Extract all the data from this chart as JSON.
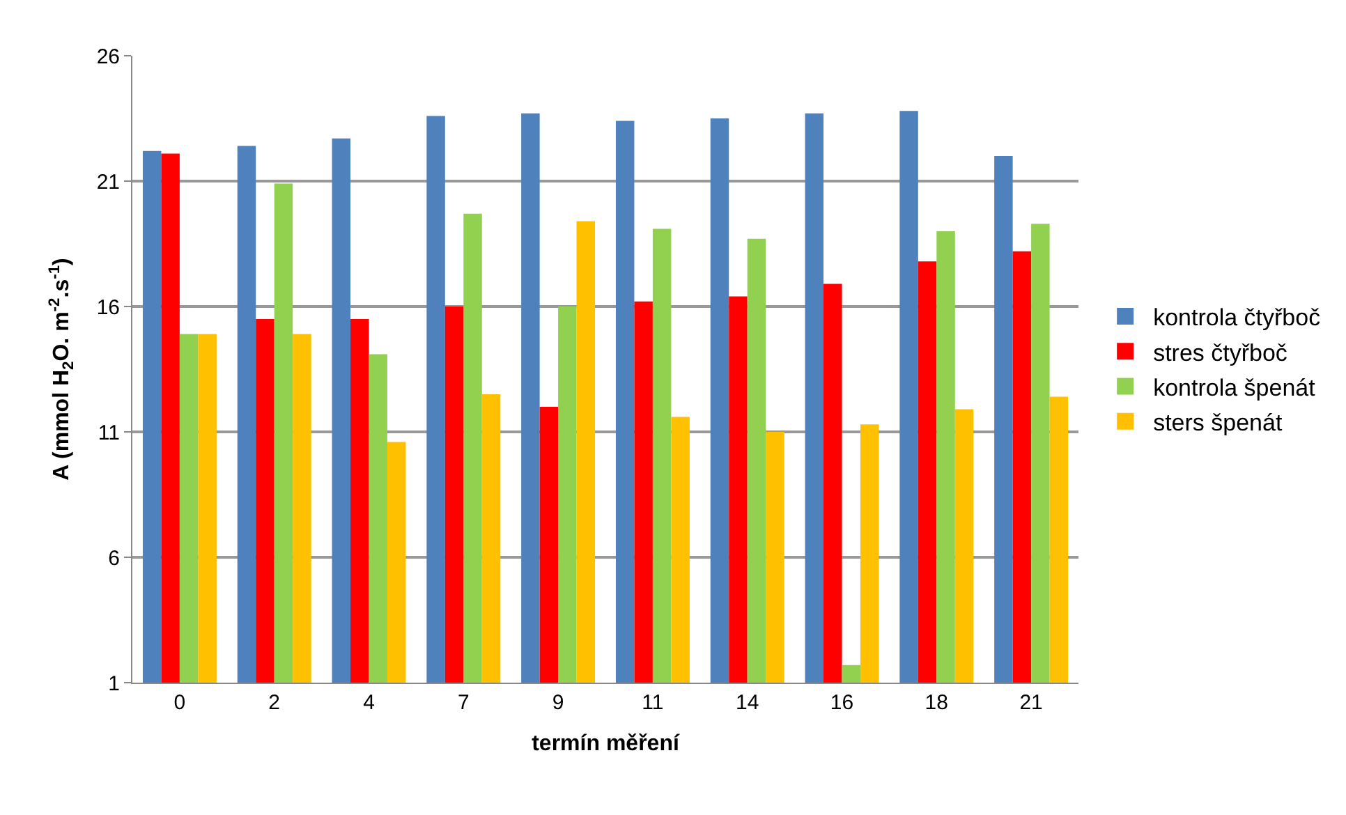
{
  "chart_data": {
    "type": "bar",
    "xlabel": "termín měření",
    "ylabel": "A (mmol H$_{2}$O. m$^{-2}$.s$^{-1}$)",
    "categories": [
      "0",
      "2",
      "4",
      "7",
      "9",
      "11",
      "14",
      "16",
      "18",
      "21"
    ],
    "series": [
      {
        "name": "kontrola čtyřboč",
        "color": "#4f81bd",
        "values": [
          22.2,
          22.4,
          22.7,
          23.6,
          23.7,
          23.4,
          23.5,
          23.7,
          23.8,
          22.0
        ]
      },
      {
        "name": "stres čtyřboč",
        "color": "#ff0000",
        "values": [
          22.1,
          15.5,
          15.5,
          16.0,
          12.0,
          16.2,
          16.4,
          16.9,
          17.8,
          18.2
        ]
      },
      {
        "name": "kontrola špenát",
        "color": "#92d050",
        "values": [
          14.9,
          20.9,
          14.1,
          19.7,
          16.0,
          19.1,
          18.7,
          1.7,
          19.0,
          19.3
        ]
      },
      {
        "name": "sters špenát",
        "color": "#ffc000",
        "values": [
          14.9,
          14.9,
          10.6,
          12.5,
          19.4,
          11.6,
          11.0,
          11.3,
          11.9,
          12.4
        ]
      }
    ],
    "ylim": [
      1,
      26
    ],
    "yticks": [
      1,
      6,
      11,
      16,
      21,
      26
    ],
    "grid": "y",
    "legend": "right"
  }
}
